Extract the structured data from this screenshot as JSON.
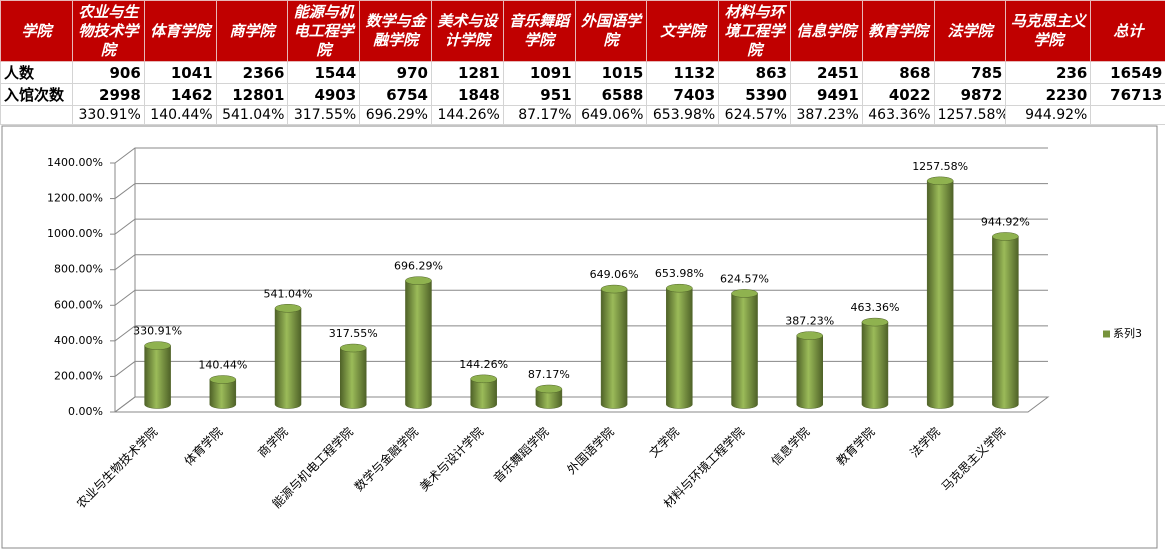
{
  "table": {
    "header": [
      "学院",
      "农业与生物技术学院",
      "体育学院",
      "商学院",
      "能源与机电工程学院",
      "数学与金融学院",
      "美术与设计学院",
      "音乐舞蹈学院",
      "外国语学院",
      "文学院",
      "材料与环境工程学院",
      "信息学院",
      "教育学院",
      "法学院",
      "马克思主义学院",
      "总计"
    ],
    "rows": [
      {
        "label": "人数",
        "cells": [
          906,
          1041,
          2366,
          1544,
          970,
          1281,
          1091,
          1015,
          1132,
          863,
          2451,
          868,
          785,
          236,
          16549
        ]
      },
      {
        "label": "入馆次数",
        "cells": [
          2998,
          1462,
          12801,
          4903,
          6754,
          1848,
          951,
          6588,
          7403,
          5390,
          9491,
          4022,
          9872,
          2230,
          76713
        ]
      },
      {
        "cells": [
          "330.91%",
          "140.44%",
          "541.04%",
          "317.55%",
          "696.29%",
          "144.26%",
          "87.17%",
          "649.06%",
          "653.98%",
          "624.57%",
          "387.23%",
          "463.36%",
          "1257.58%",
          "944.92%"
        ]
      }
    ]
  },
  "chart_data": {
    "type": "bar3d",
    "categories": [
      "农业与生物技术学院",
      "体育学院",
      "商学院",
      "能源与机电工程学院",
      "数学与金融学院",
      "美术与设计学院",
      "音乐舞蹈学院",
      "外国语学院",
      "文学院",
      "材料与环境工程学院",
      "信息学院",
      "教育学院",
      "法学院",
      "马克思主义学院"
    ],
    "series": [
      {
        "name": "系列3",
        "color": "#77933c",
        "values": [
          330.91,
          140.44,
          541.04,
          317.55,
          696.29,
          144.26,
          87.17,
          649.06,
          653.98,
          624.57,
          387.23,
          463.36,
          1257.58,
          944.92
        ],
        "value_labels": [
          "330.91%",
          "140.44%",
          "541.04%",
          "317.55%",
          "696.29%",
          "144.26%",
          "87.17%",
          "649.06%",
          "653.98%",
          "624.57%",
          "387.23%",
          "463.36%",
          "1257.58%",
          "944.92%"
        ]
      }
    ],
    "ylim": [
      0,
      1400
    ],
    "yticks": [
      {
        "value": 0,
        "label": "0.00%"
      },
      {
        "value": 200,
        "label": "200.00%"
      },
      {
        "value": 400,
        "label": "400.00%"
      },
      {
        "value": 600,
        "label": "600.00%"
      },
      {
        "value": 800,
        "label": "800.00%"
      },
      {
        "value": 1000,
        "label": "1000.00%"
      },
      {
        "value": 1200,
        "label": "1200.00%"
      },
      {
        "value": 1400,
        "label": "1400.00%"
      }
    ],
    "grid": true,
    "legend": "right"
  }
}
